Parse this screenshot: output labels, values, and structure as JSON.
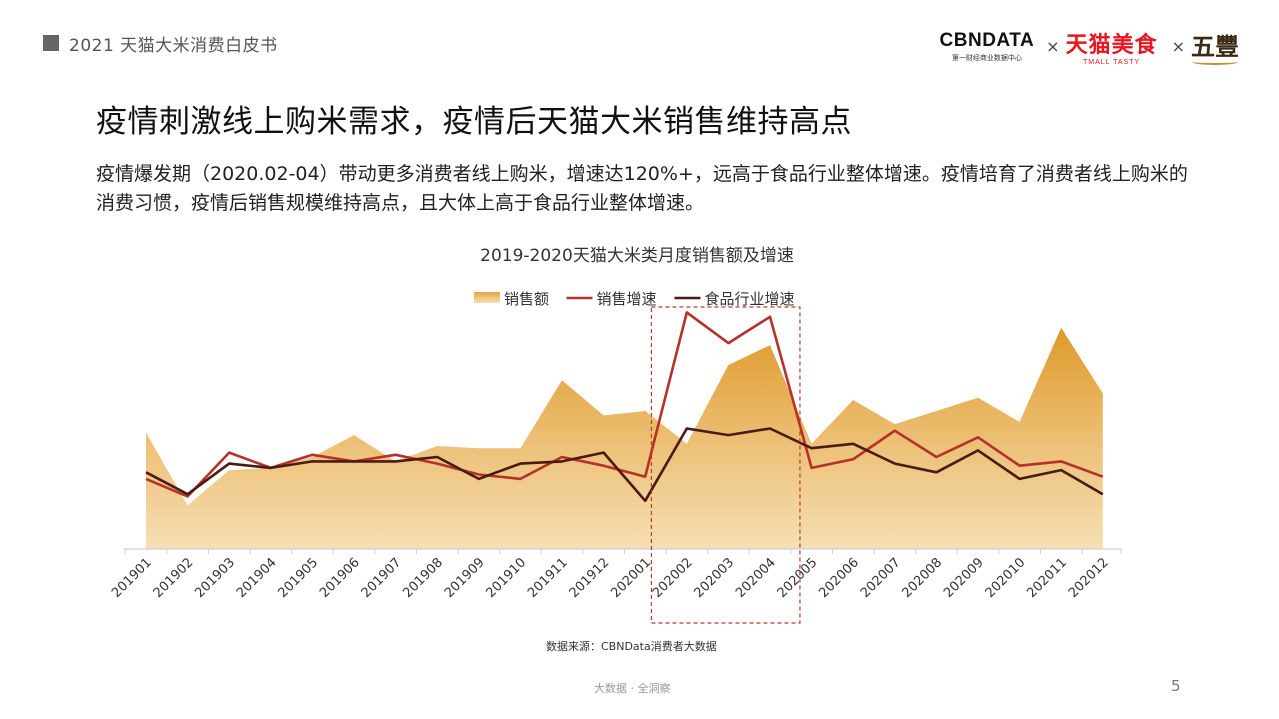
{
  "header": {
    "section_title": "2021 天猫大米消费白皮书"
  },
  "logos": {
    "cbndata": {
      "name": "CBNDATA",
      "tagline": "第一财经商业数据中心"
    },
    "separator": "×",
    "tmall": {
      "name": "天猫美食",
      "tagline": "TMALL TASTY"
    },
    "wufeng": {
      "name": "五豐"
    }
  },
  "slide": {
    "title": "疫情刺激线上购米需求，疫情后天猫大米销售维持高点",
    "description": "疫情爆发期（2020.02-04）带动更多消费者线上购米，增速达120%+，远高于食品行业整体增速。疫情培育了消费者线上购米的消费习惯，疫情后销售规模维持高点，且大体上高于食品行业整体增速。"
  },
  "chart_data": {
    "type": "area+line",
    "title": "2019-2020天猫大米类月度销售额及增速",
    "categories": [
      "201901",
      "201902",
      "201903",
      "201904",
      "201905",
      "201906",
      "201907",
      "201908",
      "201909",
      "201910",
      "201911",
      "201912",
      "202001",
      "202002",
      "202003",
      "202004",
      "202005",
      "202006",
      "202007",
      "202008",
      "202009",
      "202010",
      "202011",
      "202012"
    ],
    "series": [
      {
        "name": "销售额",
        "kind": "area",
        "color": "#E8A93A",
        "values": [
          53,
          20,
          36,
          37,
          42,
          52,
          40,
          47,
          46,
          46,
          77,
          61,
          63,
          48,
          84,
          93,
          48,
          68,
          57,
          63,
          69,
          58,
          101,
          71
        ]
      },
      {
        "name": "销售增速",
        "kind": "line",
        "color": "#B5312A",
        "values": [
          32,
          24,
          44,
          37,
          43,
          40,
          43,
          39,
          34,
          32,
          42,
          38,
          33,
          108,
          94,
          106,
          37,
          41,
          54,
          42,
          51,
          38,
          40,
          33
        ]
      },
      {
        "name": "食品行业增速",
        "kind": "line",
        "color": "#4A1A14",
        "values": [
          35,
          25,
          39,
          37,
          40,
          40,
          40,
          42,
          32,
          39,
          40,
          44,
          22,
          55,
          52,
          55,
          46,
          48,
          39,
          35,
          45,
          32,
          36,
          25
        ]
      }
    ],
    "ylim": [
      0,
      110
    ],
    "grid": false,
    "legend_position": "top-center",
    "highlight": {
      "from": "202002",
      "to": "202004",
      "style": "dashed-box",
      "color": "#C0392B"
    }
  },
  "source_note": "数据来源：CBNData消费者大数据",
  "footer": {
    "tagline": "大数据 · 全洞察",
    "page_number": "5"
  }
}
